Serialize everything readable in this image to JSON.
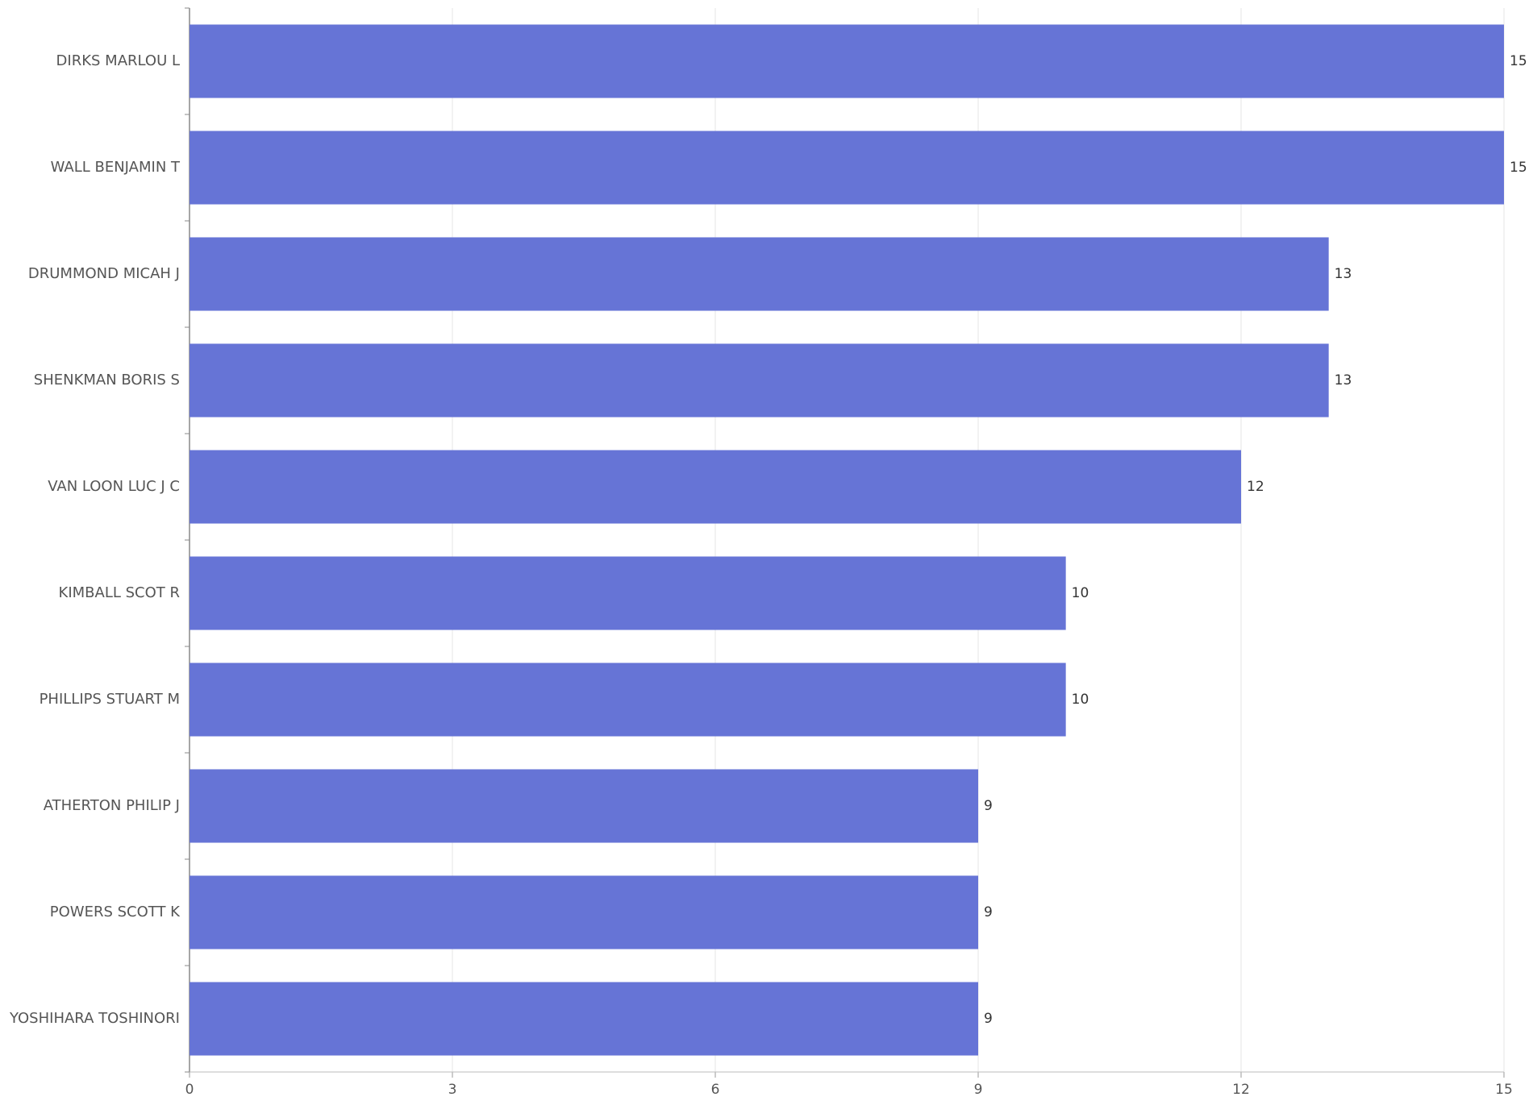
{
  "chart_data": {
    "type": "bar",
    "orientation": "horizontal",
    "categories": [
      "DIRKS MARLOU L",
      "WALL BENJAMIN T",
      "DRUMMOND MICAH J",
      "SHENKMAN BORIS S",
      "VAN LOON LUC J C",
      "KIMBALL SCOT R",
      "PHILLIPS STUART M",
      "ATHERTON PHILIP J",
      "POWERS SCOTT K",
      "YOSHIHARA TOSHINORI"
    ],
    "values": [
      15,
      15,
      13,
      13,
      12,
      10,
      10,
      9,
      9,
      9
    ],
    "color": "#6674d6",
    "xlim": [
      0,
      15
    ],
    "xticks": [
      0,
      3,
      6,
      9,
      12,
      15
    ],
    "grid": true
  }
}
